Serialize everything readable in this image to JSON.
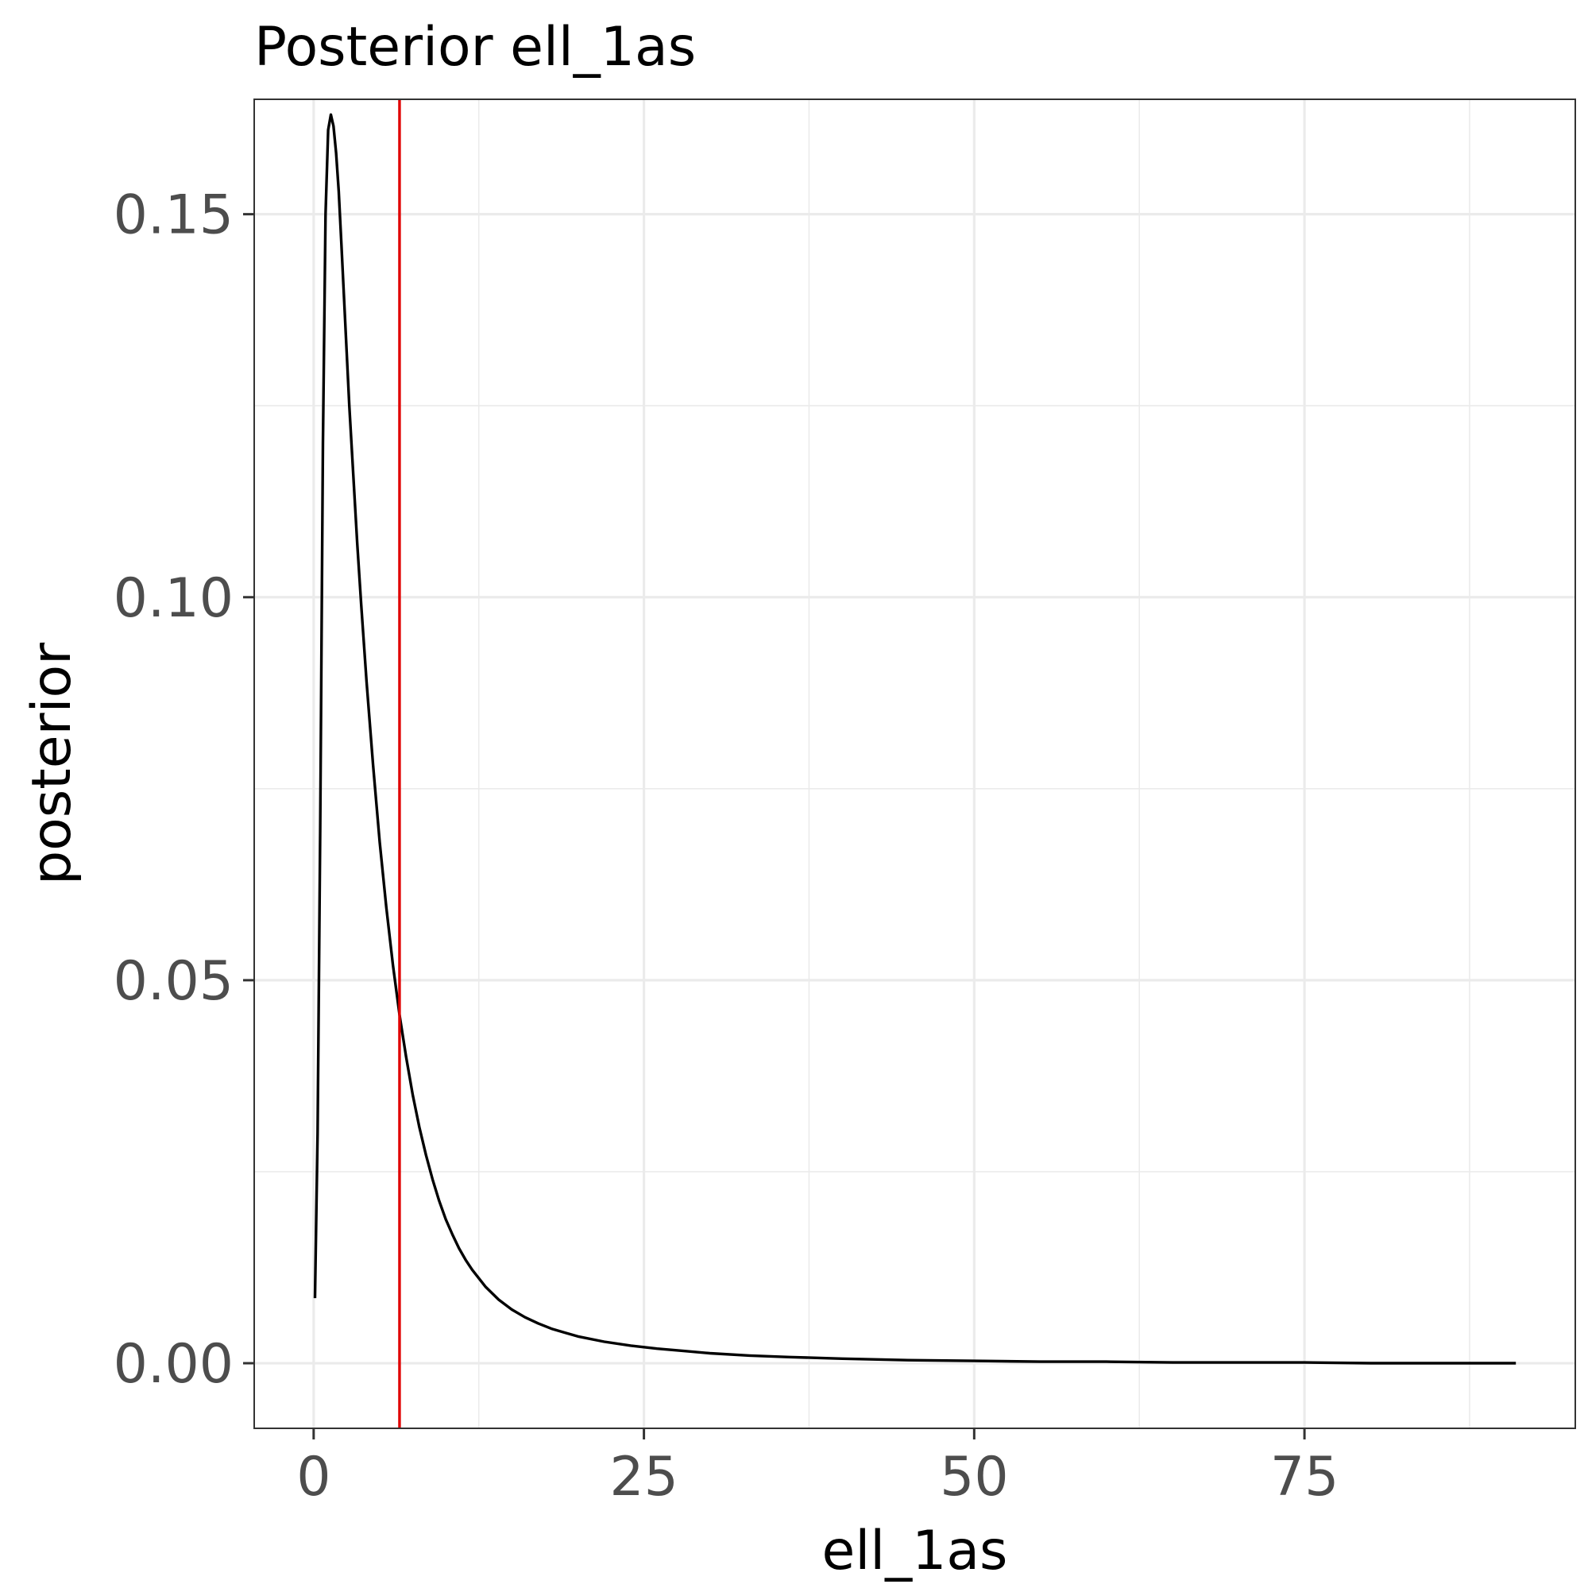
{
  "chart_data": {
    "type": "line",
    "title": "Posterior ell_1as",
    "xlabel": "ell_1as",
    "ylabel": "posterior",
    "xlim": [
      -4.5,
      95.5
    ],
    "ylim": [
      -0.0085,
      0.165
    ],
    "x_ticks": [
      0,
      25,
      50,
      75
    ],
    "x_tick_labels": [
      "0",
      "25",
      "50",
      "75"
    ],
    "y_ticks": [
      0.0,
      0.05,
      0.1,
      0.15
    ],
    "y_tick_labels": [
      "0.00",
      "0.05",
      "0.10",
      "0.15"
    ],
    "x_minor_ticks": [
      12.5,
      37.5,
      62.5,
      87.5
    ],
    "y_minor_ticks": [
      0.025,
      0.075,
      0.125
    ],
    "grid": true,
    "series": [
      {
        "color": "#000000",
        "x": [
          0.1,
          0.3,
          0.5,
          0.7,
          0.9,
          1.1,
          1.3,
          1.5,
          1.7,
          1.9,
          2.1,
          2.3,
          2.5,
          2.7,
          3.0,
          3.3,
          3.6,
          4.0,
          4.5,
          5.0,
          5.5,
          6.0,
          6.5,
          7.0,
          7.5,
          8.0,
          8.5,
          9.0,
          9.5,
          10.0,
          10.5,
          11.0,
          11.5,
          12.0,
          13.0,
          14.0,
          15.0,
          16.0,
          17.0,
          18.0,
          19.0,
          20.0,
          22.0,
          24.0,
          26.0,
          28.0,
          30.0,
          33.0,
          36.0,
          40.0,
          45.0,
          50.0,
          55.0,
          60.0,
          65.0,
          70.0,
          75.0,
          80.0,
          85.0,
          91.0
        ],
        "y": [
          0.0085,
          0.03,
          0.07,
          0.12,
          0.15,
          0.161,
          0.163,
          0.1615,
          0.158,
          0.153,
          0.146,
          0.139,
          0.132,
          0.125,
          0.116,
          0.107,
          0.099,
          0.089,
          0.078,
          0.068,
          0.0595,
          0.052,
          0.0455,
          0.04,
          0.035,
          0.0308,
          0.0272,
          0.024,
          0.0212,
          0.0188,
          0.0168,
          0.015,
          0.0135,
          0.0122,
          0.01,
          0.0083,
          0.007,
          0.006,
          0.0052,
          0.0045,
          0.004,
          0.0035,
          0.0028,
          0.0023,
          0.0019,
          0.0016,
          0.0013,
          0.001,
          0.0008,
          0.0006,
          0.0004,
          0.0003,
          0.0002,
          0.0002,
          0.0001,
          0.0001,
          0.0001,
          0.0,
          0.0,
          0.0
        ]
      }
    ],
    "vline": {
      "x": 6.5,
      "color": "#e00000"
    }
  }
}
